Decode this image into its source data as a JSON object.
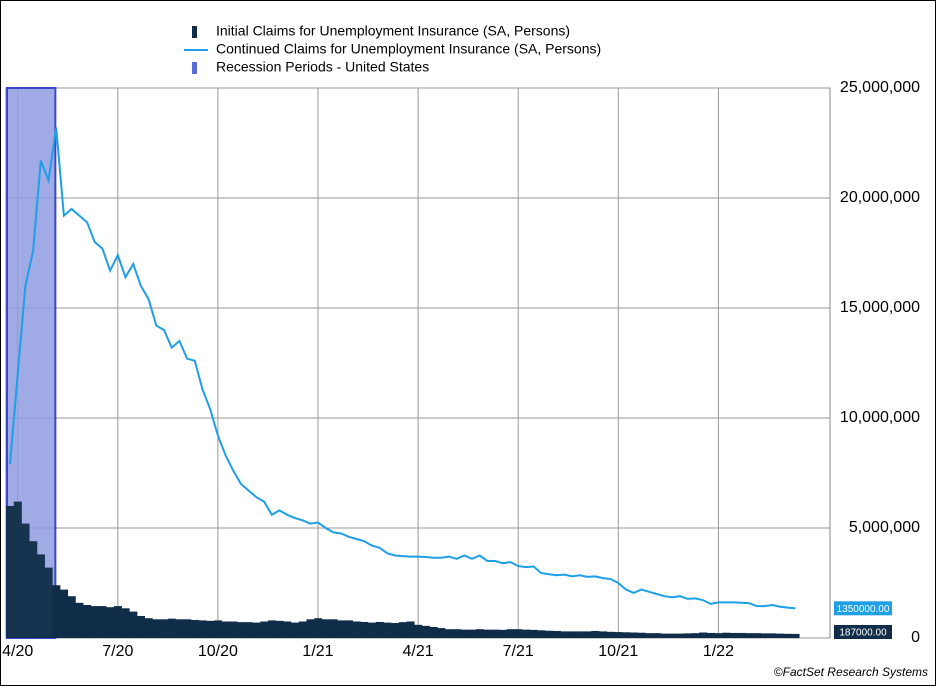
{
  "chart_data": {
    "type": "bar-line",
    "categories": [
      null,
      "4/20",
      null,
      null,
      null,
      null,
      null,
      null,
      null,
      null,
      null,
      null,
      null,
      null,
      "7/20",
      null,
      null,
      null,
      null,
      null,
      null,
      null,
      null,
      null,
      null,
      null,
      null,
      "10/20",
      null,
      null,
      null,
      null,
      null,
      null,
      null,
      null,
      null,
      null,
      null,
      null,
      "1/21",
      null,
      null,
      null,
      null,
      null,
      null,
      null,
      null,
      null,
      null,
      null,
      null,
      "4/21",
      null,
      null,
      null,
      null,
      null,
      null,
      null,
      null,
      null,
      null,
      null,
      null,
      "7/21",
      null,
      null,
      null,
      null,
      null,
      null,
      null,
      null,
      null,
      null,
      null,
      null,
      "10/21",
      null,
      null,
      null,
      null,
      null,
      null,
      null,
      null,
      null,
      null,
      null,
      null,
      "1/22",
      null,
      null,
      null,
      null,
      null,
      null,
      null,
      null,
      null,
      null
    ],
    "series": [
      {
        "name": "Initial Claims for Unemployment Insurance (SA, Persons)",
        "type": "bar",
        "color": "#0f2d48",
        "end_label": "187000.00",
        "values": [
          6000000,
          6200000,
          5200000,
          4400000,
          3800000,
          3200000,
          2400000,
          2200000,
          1900000,
          1600000,
          1500000,
          1450000,
          1450000,
          1400000,
          1450000,
          1350000,
          1200000,
          1000000,
          900000,
          850000,
          850000,
          880000,
          850000,
          850000,
          820000,
          800000,
          780000,
          800000,
          750000,
          750000,
          720000,
          720000,
          700000,
          750000,
          800000,
          780000,
          750000,
          700000,
          750000,
          850000,
          900000,
          850000,
          850000,
          800000,
          800000,
          750000,
          730000,
          700000,
          730000,
          700000,
          680000,
          720000,
          750000,
          600000,
          550000,
          500000,
          450000,
          400000,
          400000,
          380000,
          380000,
          400000,
          380000,
          380000,
          370000,
          400000,
          400000,
          380000,
          370000,
          350000,
          330000,
          320000,
          300000,
          300000,
          300000,
          300000,
          320000,
          300000,
          280000,
          270000,
          260000,
          250000,
          240000,
          220000,
          220000,
          200000,
          200000,
          200000,
          210000,
          220000,
          250000,
          230000,
          220000,
          240000,
          230000,
          230000,
          220000,
          220000,
          210000,
          210000,
          200000,
          190000,
          187000
        ]
      },
      {
        "name": "Continued Claims for Unemployment Insurance (SA, Persons)",
        "type": "line",
        "color": "#1e9fe6",
        "end_label": "1350000.00",
        "values": [
          7900000,
          12000000,
          16000000,
          17600000,
          21700000,
          20800000,
          23200000,
          19200000,
          19500000,
          19200000,
          18900000,
          18000000,
          17700000,
          16700000,
          17400000,
          16400000,
          17000000,
          16000000,
          15400000,
          14200000,
          14000000,
          13200000,
          13500000,
          12700000,
          12600000,
          11300000,
          10400000,
          9200000,
          8300000,
          7600000,
          7000000,
          6700000,
          6400000,
          6200000,
          5600000,
          5800000,
          5600000,
          5450000,
          5350000,
          5200000,
          5250000,
          5000000,
          4800000,
          4750000,
          4600000,
          4500000,
          4400000,
          4200000,
          4100000,
          3850000,
          3750000,
          3720000,
          3700000,
          3700000,
          3680000,
          3650000,
          3650000,
          3700000,
          3600000,
          3750000,
          3600000,
          3750000,
          3500000,
          3500000,
          3400000,
          3450000,
          3270000,
          3220000,
          3250000,
          2950000,
          2900000,
          2850000,
          2880000,
          2800000,
          2850000,
          2780000,
          2800000,
          2720000,
          2680000,
          2500000,
          2200000,
          2050000,
          2200000,
          2100000,
          2000000,
          1900000,
          1850000,
          1900000,
          1780000,
          1800000,
          1720000,
          1550000,
          1620000,
          1620000,
          1620000,
          1600000,
          1580000,
          1450000,
          1450000,
          1500000,
          1420000,
          1380000,
          1350000
        ]
      }
    ],
    "recession": {
      "name": "Recession Periods - United States",
      "color": "#8f9be0",
      "span": [
        0,
        5
      ]
    },
    "ylim": [
      0,
      25000000
    ],
    "yticks": [
      0,
      {
        "value": 5000000,
        "label": "5,000,000"
      },
      {
        "value": 10000000,
        "label": "10,000,000"
      },
      {
        "value": 15000000,
        "label": "15,000,000"
      },
      {
        "value": 20000000,
        "label": "20,000,000"
      },
      {
        "value": 25000000,
        "label": "25,000,000"
      }
    ],
    "grid": true,
    "source": "©FactSet Research Systems"
  }
}
